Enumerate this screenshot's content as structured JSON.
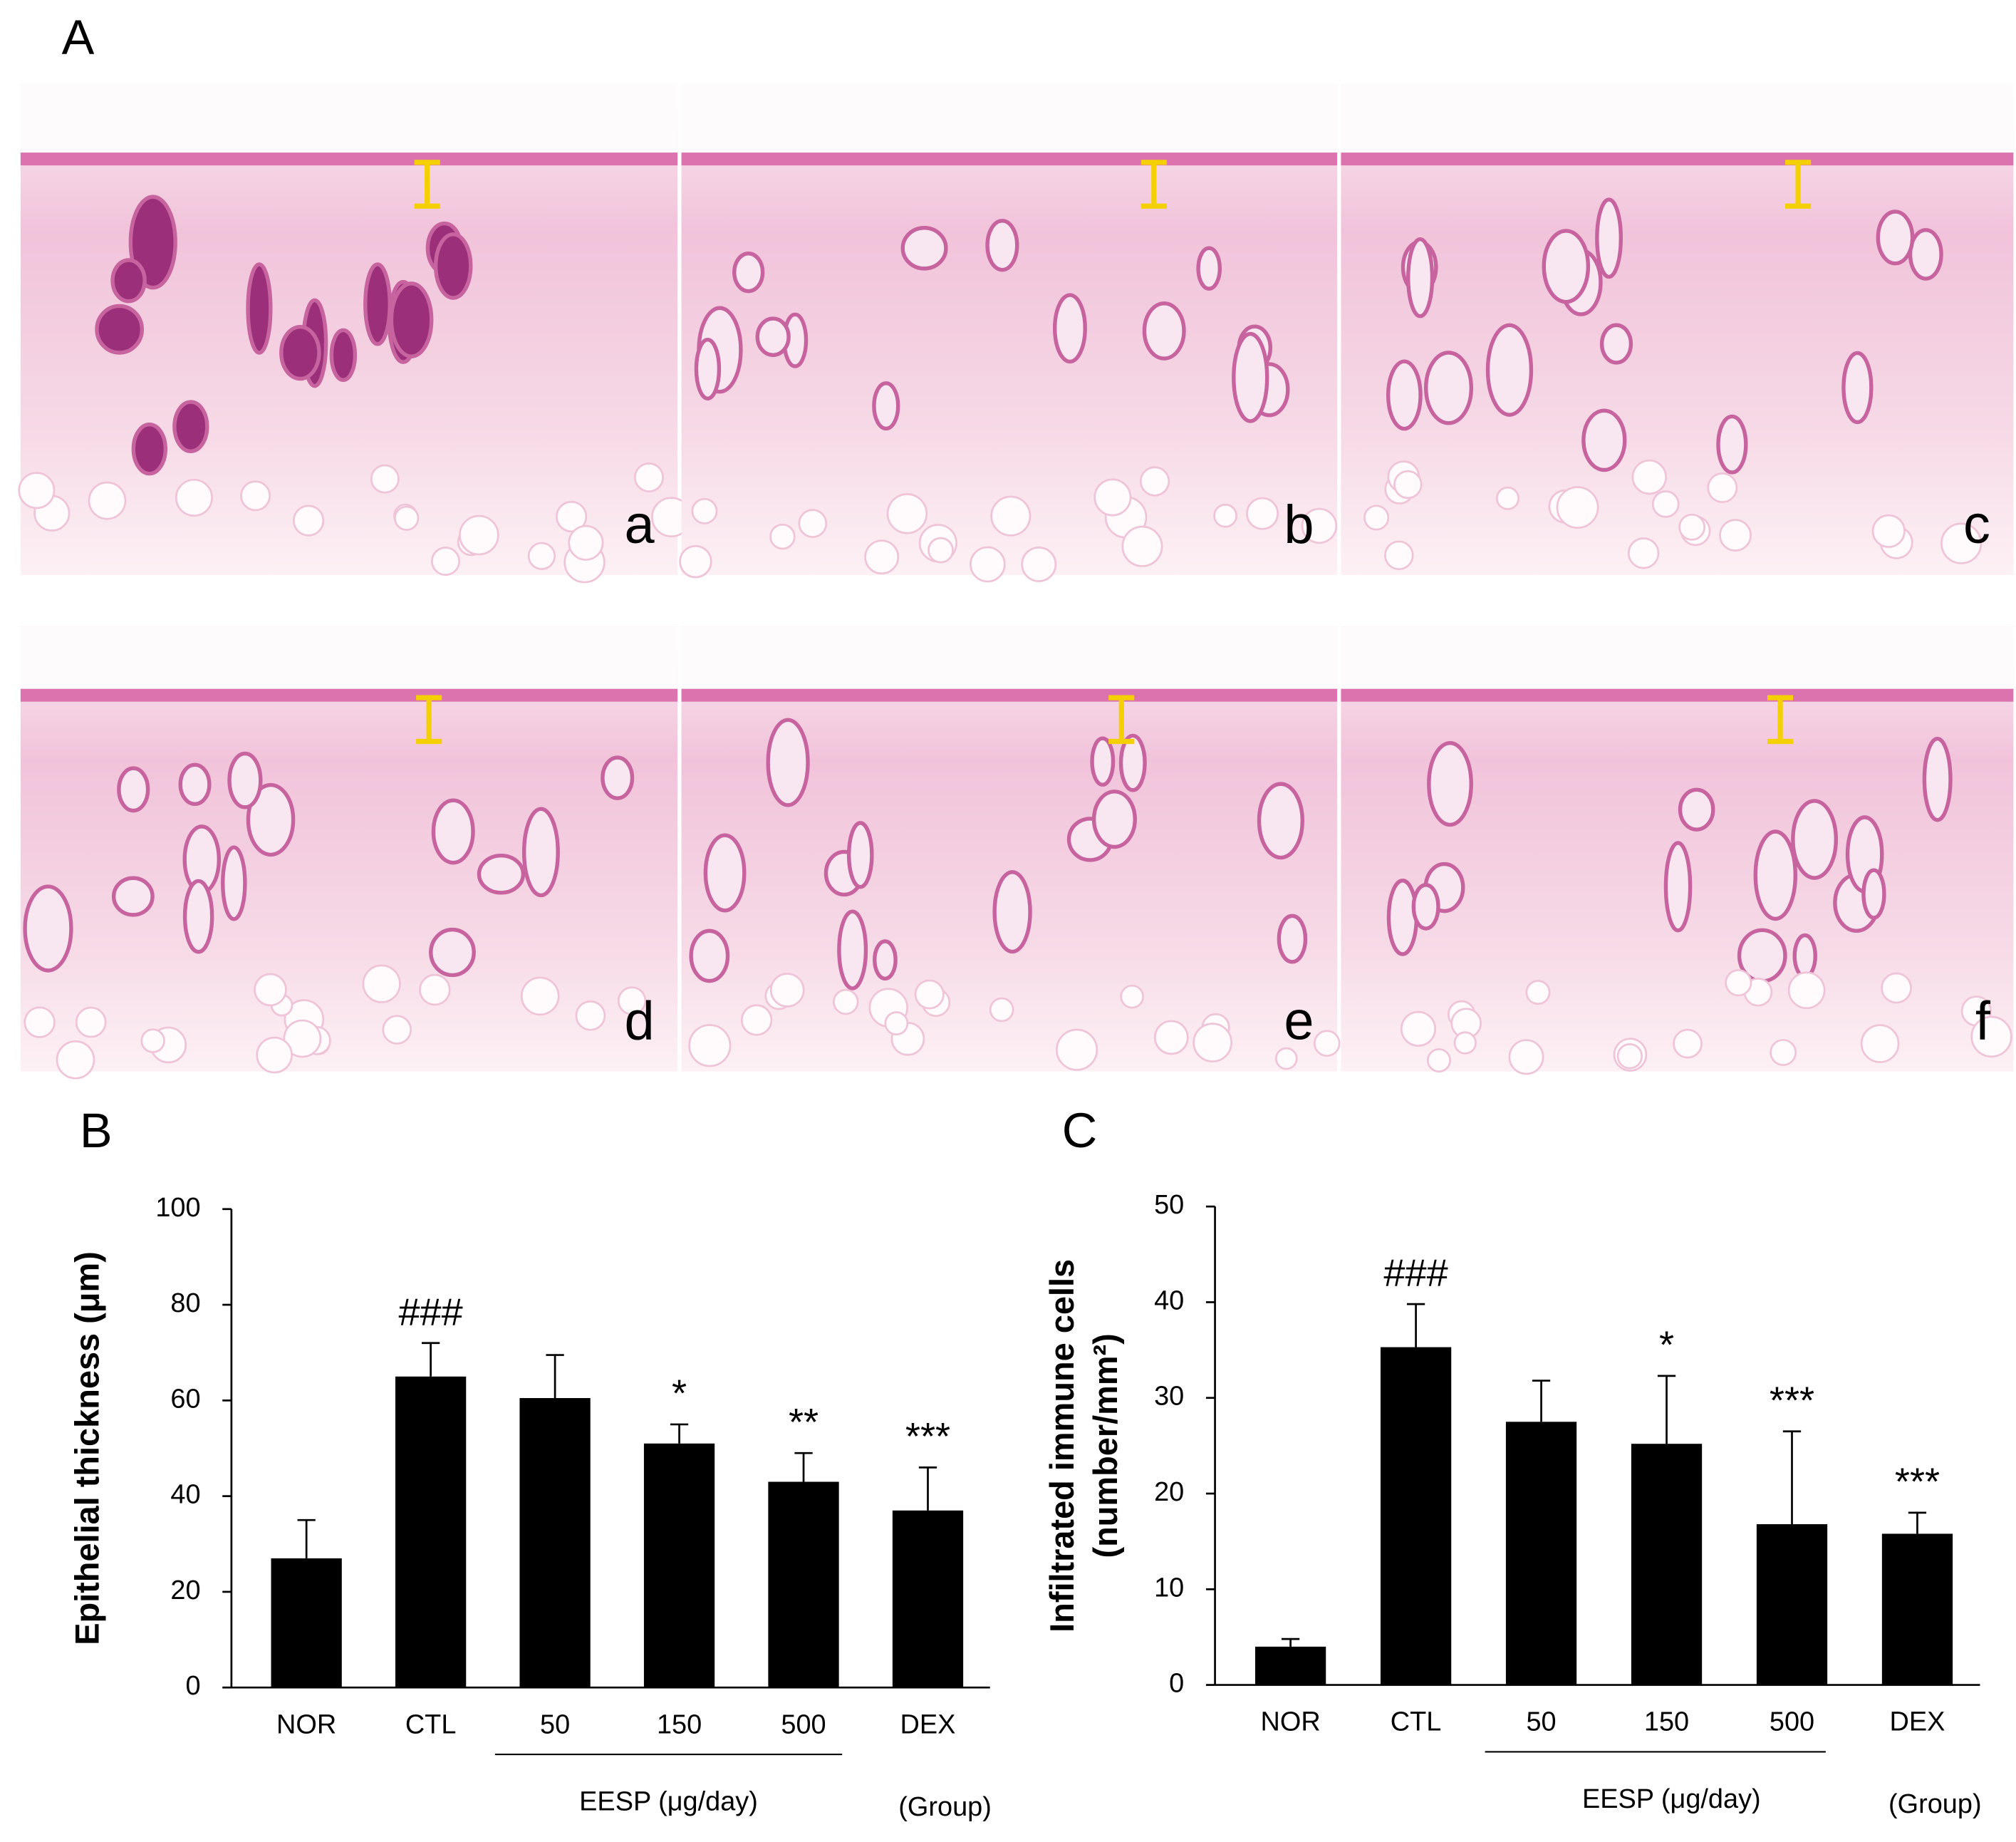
{
  "figure": {
    "panel_labels": [
      "A",
      "B",
      "C"
    ],
    "image_labels": [
      "a",
      "b",
      "c",
      "d",
      "e",
      "f"
    ]
  },
  "chart_data": [
    {
      "type": "bar",
      "ylabel": [
        "Epithelial thickness (μm)"
      ],
      "categories": [
        "NOR",
        "CTL",
        "50",
        "150",
        "500",
        "DEX"
      ],
      "values": [
        27,
        65,
        60.5,
        51,
        43,
        37
      ],
      "errors": [
        8,
        7,
        9,
        4,
        6,
        9
      ],
      "value_annotations": [
        null,
        "###",
        null,
        "*",
        "**",
        "***"
      ],
      "group_label": "EESP (μg/day)",
      "xlabel": "(Group)",
      "color": "#000000",
      "ylim": [
        0,
        100
      ],
      "yticks": [
        0,
        20,
        40,
        60,
        80,
        100
      ],
      "grid": false
    },
    {
      "type": "bar",
      "ylabel": [
        "Infiltrated immune cells",
        "(number/mm²)"
      ],
      "categories": [
        "NOR",
        "CTL",
        "50",
        "150",
        "500",
        "DEX"
      ],
      "values": [
        4,
        35.3,
        27.5,
        25.2,
        16.8,
        15.8
      ],
      "errors": [
        0.8,
        4.5,
        4.3,
        7.1,
        9.7,
        2.2
      ],
      "value_annotations": [
        null,
        "###",
        null,
        "*",
        "***",
        "***"
      ],
      "group_label": "EESP (μg/day)",
      "xlabel": "(Group)",
      "color": "#000000",
      "ylim": [
        0,
        50
      ],
      "yticks": [
        0,
        10,
        20,
        30,
        40,
        50
      ],
      "grid": false
    }
  ]
}
